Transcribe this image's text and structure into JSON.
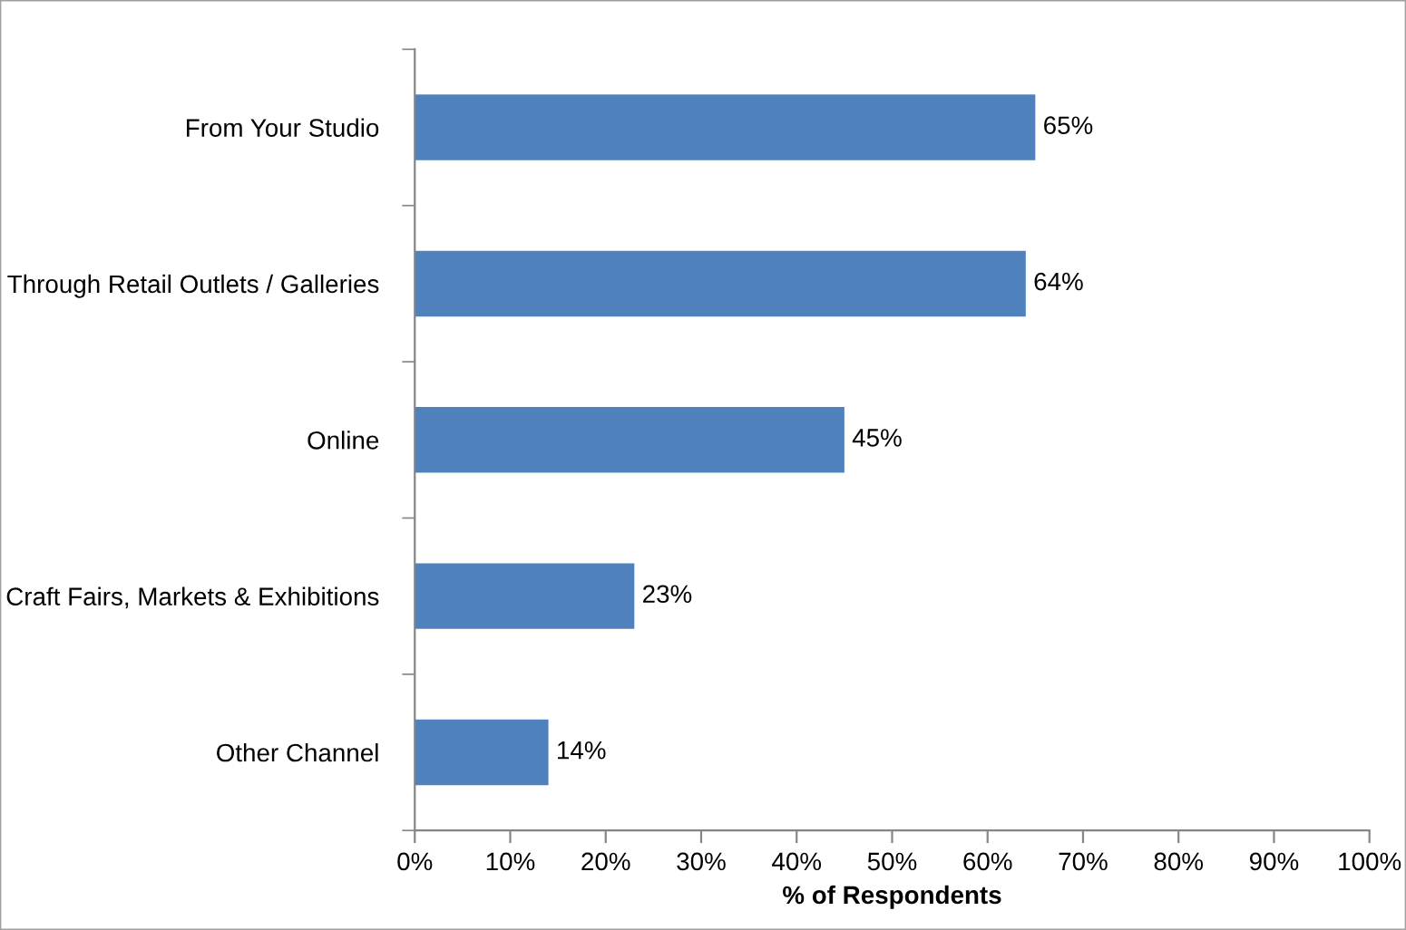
{
  "chart_data": {
    "type": "bar",
    "orientation": "horizontal",
    "categories": [
      "From Your Studio",
      "Through Retail Outlets / Galleries",
      "Online",
      "Craft Fairs, Markets & Exhibitions",
      "Other Channel"
    ],
    "values": [
      65,
      64,
      45,
      23,
      14
    ],
    "value_labels": [
      "65%",
      "64%",
      "45%",
      "23%",
      "14%"
    ],
    "color": "#4f81bd",
    "xlabel": "% of Respondents",
    "xlim": [
      0,
      100
    ],
    "xticks": [
      {
        "value": 0,
        "label": "0%"
      },
      {
        "value": 10,
        "label": "10%"
      },
      {
        "value": 20,
        "label": "20%"
      },
      {
        "value": 30,
        "label": "30%"
      },
      {
        "value": 40,
        "label": "40%"
      },
      {
        "value": 50,
        "label": "50%"
      },
      {
        "value": 60,
        "label": "60%"
      },
      {
        "value": 70,
        "label": "70%"
      },
      {
        "value": 80,
        "label": "80%"
      },
      {
        "value": 90,
        "label": "90%"
      },
      {
        "value": 100,
        "label": "100%"
      }
    ],
    "grid": false,
    "legend": false
  }
}
